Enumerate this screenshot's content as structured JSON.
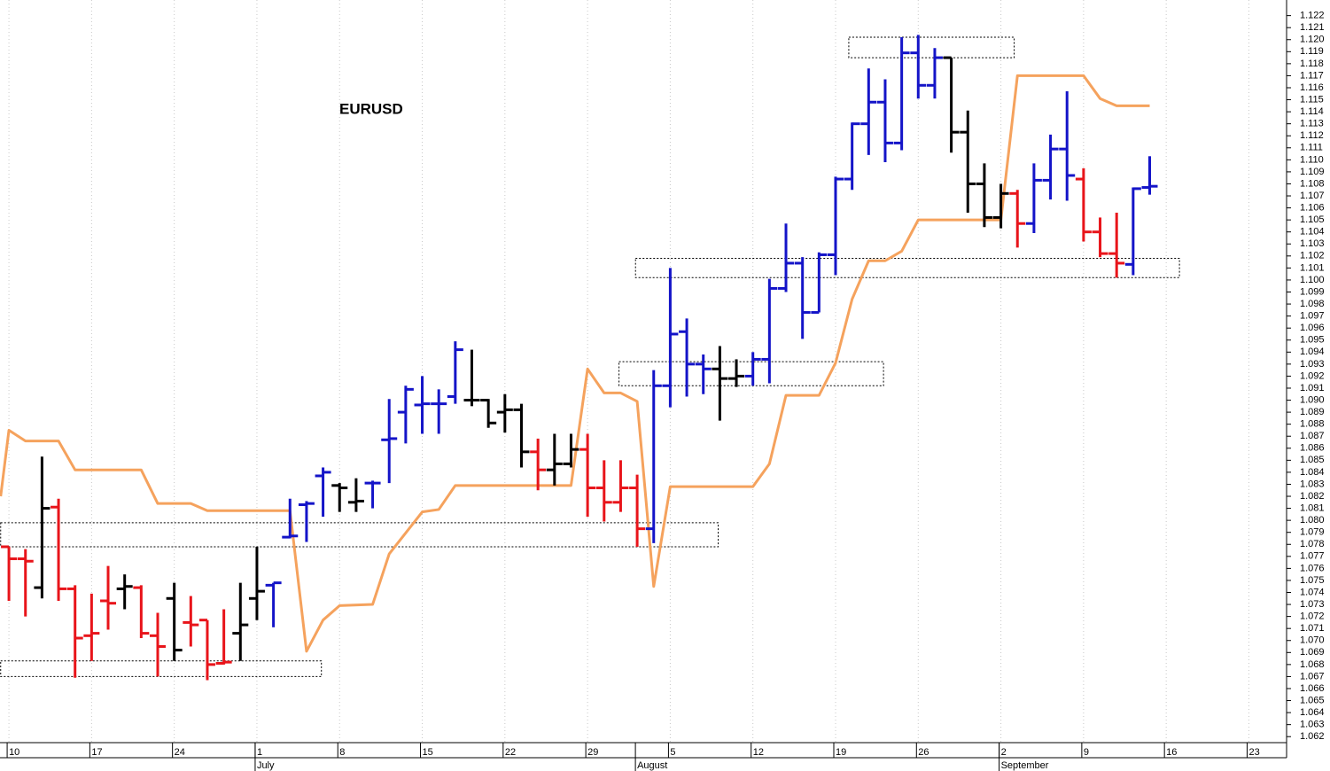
{
  "chart_data": {
    "type": "ohlc",
    "title": "EURUSD",
    "grid": true,
    "xlim": [
      -0.54,
      77.28
    ],
    "xticks": [
      {
        "value": 0,
        "label": "10"
      },
      {
        "value": 5,
        "label": "17"
      },
      {
        "value": 10,
        "label": "24"
      },
      {
        "value": 15,
        "label": "1"
      },
      {
        "value": 20,
        "label": "8"
      },
      {
        "value": 25,
        "label": "15"
      },
      {
        "value": 30,
        "label": "22"
      },
      {
        "value": 35,
        "label": "29"
      },
      {
        "value": 40,
        "label": "5"
      },
      {
        "value": 45,
        "label": "12"
      },
      {
        "value": 50,
        "label": "19"
      },
      {
        "value": 55,
        "label": "26"
      },
      {
        "value": 60,
        "label": "2"
      },
      {
        "value": 65,
        "label": "9"
      },
      {
        "value": 70,
        "label": "16"
      },
      {
        "value": 75,
        "label": "23"
      }
    ],
    "months": [
      {
        "value": 15,
        "label": "July"
      },
      {
        "value": 38,
        "label": "August"
      },
      {
        "value": 60,
        "label": "September"
      }
    ],
    "ylim": [
      1.0615,
      1.1233
    ],
    "yticks": [
      1.062,
      1.063,
      1.064,
      1.065,
      1.066,
      1.067,
      1.068,
      1.069,
      {
        "value": 1.07,
        "label": "1.070"
      },
      1.071,
      1.072,
      1.073,
      1.074,
      1.075,
      1.076,
      1.077,
      1.078,
      1.079,
      {
        "value": 1.08,
        "label": "1.080"
      },
      1.081,
      1.082,
      1.083,
      1.084,
      1.085,
      1.086,
      1.087,
      1.088,
      1.089,
      {
        "value": 1.09,
        "label": "1.090"
      },
      1.091,
      1.092,
      1.093,
      1.094,
      1.095,
      1.096,
      1.097,
      1.098,
      1.099,
      {
        "value": 1.1,
        "label": "1.100"
      },
      1.101,
      1.102,
      1.103,
      1.104,
      1.105,
      1.106,
      1.107,
      1.108,
      1.109,
      {
        "value": 1.11,
        "label": "1.110"
      },
      1.111,
      1.112,
      1.113,
      1.114,
      1.115,
      1.116,
      1.117,
      1.118,
      1.119,
      {
        "value": 1.12,
        "label": "1.120"
      },
      1.121,
      1.122
    ],
    "series": [
      {
        "color": "#e8141a",
        "x": [
          0,
          1,
          3,
          4,
          5,
          6,
          8,
          9,
          11,
          12,
          13,
          32,
          35,
          36,
          37,
          38,
          61,
          65,
          66,
          67
        ],
        "open": [
          1.0778,
          1.0768,
          1.0811,
          1.0743,
          1.0704,
          1.0733,
          1.0744,
          1.0704,
          1.0715,
          1.0717,
          1.0681,
          1.0857,
          1.0859,
          1.0827,
          1.0815,
          1.0827,
          1.1072,
          1.1084,
          1.104,
          1.1022
        ],
        "high": [
          1.0778,
          1.0776,
          1.0818,
          1.0746,
          1.0739,
          1.0762,
          1.0746,
          1.0723,
          1.0737,
          1.0717,
          1.0726,
          1.0868,
          1.0872,
          1.085,
          1.085,
          1.0838,
          1.1075,
          1.1093,
          1.1052,
          1.1056
        ],
        "low": [
          1.0733,
          1.072,
          1.0733,
          1.0669,
          1.0683,
          1.0709,
          1.0702,
          1.067,
          1.0695,
          1.0667,
          1.068,
          1.0825,
          1.0803,
          1.0799,
          1.0807,
          1.0778,
          1.1027,
          1.1032,
          1.1019,
          1.1002
        ],
        "close": [
          1.0768,
          1.0766,
          1.0743,
          1.0702,
          1.0706,
          1.0731,
          1.0706,
          1.0695,
          1.0713,
          1.068,
          1.0682,
          1.0842,
          1.0827,
          1.0815,
          1.0827,
          1.0793,
          1.1047,
          1.104,
          1.1022,
          1.1014
        ]
      },
      {
        "color": "#000000",
        "x": [
          2,
          7,
          10,
          14,
          15,
          20,
          21,
          28,
          29,
          30,
          31,
          33,
          34,
          43,
          44,
          57,
          58,
          59,
          60
        ],
        "open": [
          1.0744,
          1.0743,
          1.0735,
          1.0706,
          1.0735,
          1.0829,
          1.0815,
          1.09,
          1.09,
          1.089,
          1.0892,
          1.0842,
          1.0847,
          1.0926,
          1.0918,
          1.1185,
          1.1123,
          1.108,
          1.1052
        ],
        "high": [
          1.0853,
          1.0755,
          1.0748,
          1.0748,
          1.0778,
          1.0831,
          1.0835,
          1.0942,
          1.0901,
          1.0905,
          1.0897,
          1.0872,
          1.0872,
          1.0945,
          1.0934,
          1.1185,
          1.1141,
          1.1097,
          1.108
        ],
        "low": [
          1.0735,
          1.0726,
          1.0683,
          1.0683,
          1.0717,
          1.0807,
          1.0807,
          1.0895,
          1.0877,
          1.0873,
          1.0844,
          1.0829,
          1.0844,
          1.0883,
          1.0911,
          1.1106,
          1.1056,
          1.1044,
          1.1043
        ],
        "close": [
          1.081,
          1.0745,
          1.0692,
          1.0713,
          1.0741,
          1.0827,
          1.0816,
          1.09,
          1.0881,
          1.0892,
          1.0857,
          1.0847,
          1.0859,
          1.0918,
          1.092,
          1.1123,
          1.108,
          1.1052,
          1.1072
        ]
      },
      {
        "color": "#1414c8",
        "x": [
          16,
          17,
          18,
          19,
          22,
          23,
          24,
          25,
          26,
          27,
          39,
          40,
          41,
          42,
          45,
          46,
          47,
          48,
          49,
          50,
          51,
          52,
          53,
          54,
          55,
          56,
          62,
          63,
          64,
          68,
          69
        ],
        "open": [
          1.0746,
          1.0786,
          1.0813,
          1.0837,
          1.0831,
          1.0867,
          1.089,
          1.0896,
          1.0897,
          1.0903,
          1.0793,
          1.0912,
          1.0957,
          1.093,
          1.092,
          1.0934,
          1.0993,
          1.1014,
          1.0973,
          1.1021,
          1.1084,
          1.113,
          1.1148,
          1.1114,
          1.1189,
          1.1162,
          1.1047,
          1.1083,
          1.1109,
          1.1013,
          1.1077
        ],
        "high": [
          1.0748,
          1.0818,
          1.0816,
          1.0844,
          1.0833,
          1.0901,
          1.0912,
          1.092,
          1.0909,
          1.0949,
          1.0925,
          1.101,
          1.0968,
          1.0938,
          1.094,
          1.1001,
          1.1047,
          1.1019,
          1.1023,
          1.1086,
          1.1131,
          1.1176,
          1.1167,
          1.1202,
          1.1204,
          1.1193,
          1.1097,
          1.1121,
          1.1157,
          1.1077,
          1.1103
        ],
        "low": [
          1.0711,
          1.0785,
          1.0782,
          1.0803,
          1.081,
          1.0831,
          1.0864,
          1.0872,
          1.0872,
          1.0897,
          1.0781,
          1.0894,
          1.0903,
          1.0905,
          1.0912,
          1.0914,
          1.099,
          1.0951,
          1.0973,
          1.1004,
          1.1075,
          1.1104,
          1.1098,
          1.1108,
          1.1151,
          1.1151,
          1.1039,
          1.1067,
          1.1066,
          1.1004,
          1.1071
        ],
        "close": [
          1.0748,
          1.0787,
          1.0814,
          1.084,
          1.0831,
          1.0868,
          1.0909,
          1.0897,
          1.0897,
          1.0942,
          1.0912,
          1.0955,
          1.093,
          1.0926,
          1.0934,
          1.0993,
          1.1014,
          1.0973,
          1.1021,
          1.1084,
          1.113,
          1.1148,
          1.1114,
          1.1189,
          1.1162,
          1.1185,
          1.1083,
          1.1109,
          1.1087,
          1.1076,
          1.1078
        ]
      }
    ],
    "line": {
      "color": "#f5a25d",
      "x": [
        -0.5,
        0,
        1,
        3,
        4,
        8,
        9,
        11,
        12,
        17,
        18,
        19,
        20,
        22,
        23,
        25,
        26,
        27,
        34,
        35,
        36,
        37,
        38,
        39,
        40,
        45,
        46,
        47,
        49,
        50,
        51,
        52,
        53,
        54,
        55,
        60,
        61,
        65,
        66,
        67,
        69
      ],
      "values": [
        1.082,
        1.0875,
        1.0866,
        1.0866,
        1.0842,
        1.0842,
        1.0814,
        1.0814,
        1.0808,
        1.0808,
        1.0691,
        1.0717,
        1.0729,
        1.073,
        1.0772,
        1.0807,
        1.0809,
        1.0829,
        1.0829,
        1.0926,
        1.0906,
        1.0906,
        1.0899,
        1.0745,
        1.0828,
        1.0828,
        1.0847,
        1.0904,
        1.0904,
        1.0931,
        1.0984,
        1.1016,
        1.1016,
        1.1024,
        1.105,
        1.105,
        1.117,
        1.117,
        1.1151,
        1.1145,
        1.1145
      ]
    },
    "zones": [
      {
        "x": [
          -0.5,
          18.9
        ],
        "y": [
          1.067,
          1.0683
        ]
      },
      {
        "x": [
          -0.5,
          42.9
        ],
        "y": [
          1.0778,
          1.0798
        ]
      },
      {
        "x": [
          36.9,
          52.9
        ],
        "y": [
          1.0912,
          1.0932
        ]
      },
      {
        "x": [
          37.9,
          70.8
        ],
        "y": [
          1.1002,
          1.1018
        ]
      },
      {
        "x": [
          50.8,
          60.8
        ],
        "y": [
          1.1185,
          1.1202
        ]
      }
    ]
  }
}
